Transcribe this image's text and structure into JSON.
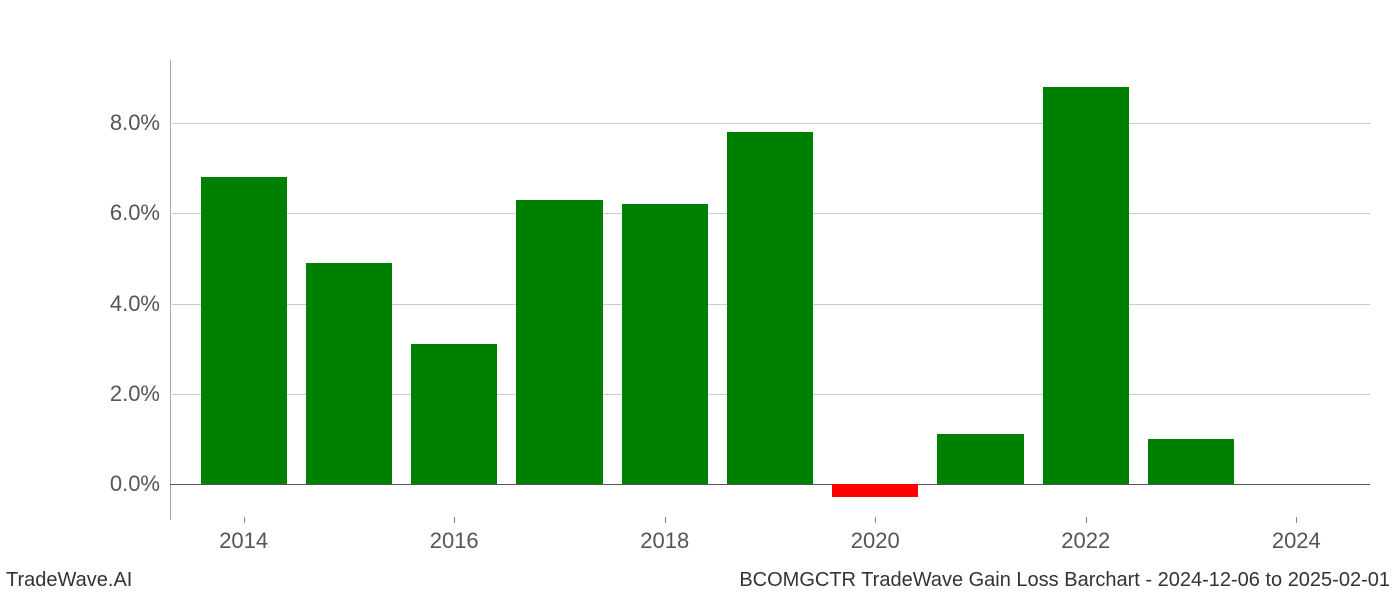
{
  "chart": {
    "type": "bar",
    "background_color": "#ffffff",
    "grid_color": "#cccccc",
    "zero_line_color": "#555555",
    "positive_color": "#008000",
    "negative_color": "#ff0000",
    "ylim_min": -0.8,
    "ylim_max": 9.4,
    "y_ticks": [
      0.0,
      2.0,
      4.0,
      6.0,
      8.0
    ],
    "y_tick_labels": [
      "0.0%",
      "2.0%",
      "4.0%",
      "6.0%",
      "8.0%"
    ],
    "x_ticks": [
      2014,
      2016,
      2018,
      2020,
      2022,
      2024
    ],
    "x_tick_labels": [
      "2014",
      "2016",
      "2018",
      "2020",
      "2022",
      "2024"
    ],
    "x_min": 2013.3,
    "x_max": 2024.7,
    "bar_width_years": 0.82,
    "tick_label_fontsize": 22,
    "tick_label_color": "#555555",
    "bars": [
      {
        "year": 2014,
        "value": 6.8
      },
      {
        "year": 2015,
        "value": 4.9
      },
      {
        "year": 2016,
        "value": 3.1
      },
      {
        "year": 2017,
        "value": 6.3
      },
      {
        "year": 2018,
        "value": 6.2
      },
      {
        "year": 2019,
        "value": 7.8
      },
      {
        "year": 2020,
        "value": -0.3
      },
      {
        "year": 2021,
        "value": 1.1
      },
      {
        "year": 2022,
        "value": 8.8
      },
      {
        "year": 2023,
        "value": 1.0
      }
    ]
  },
  "footer": {
    "left": "TradeWave.AI",
    "right": "BCOMGCTR TradeWave Gain Loss Barchart - 2024-12-06 to 2025-02-01",
    "fontsize": 20,
    "color": "#333333"
  }
}
